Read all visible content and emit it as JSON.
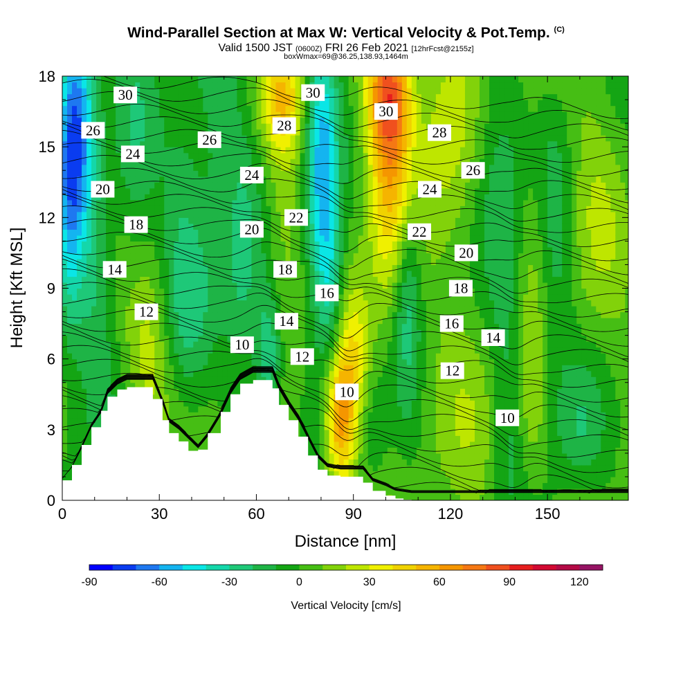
{
  "title": {
    "main": "Wind-Parallel Section at Max W: Vertical Velocity & Pot.Temp.",
    "copyright": "(C)",
    "valid_prefix": "Valid 1500 JST",
    "valid_z": "(0600Z)",
    "valid_date": "FRI 26 Feb 2021",
    "forecast": "[12hrFcst@2155z]",
    "box": "boxWmax=69@36.25,138.93,1464m"
  },
  "chart_data": {
    "type": "heatmap",
    "xlabel": "Distance [nm]",
    "ylabel": "Height [Kft MSL]",
    "xlim": [
      0,
      175
    ],
    "ylim": [
      0,
      18
    ],
    "x_ticks": [
      0,
      30,
      60,
      90,
      120,
      150
    ],
    "y_ticks": [
      0,
      3,
      6,
      9,
      12,
      15,
      18
    ],
    "colorbar": {
      "label": "Vertical Velocity [cm/s]",
      "range": [
        -90,
        130
      ],
      "step": 10,
      "tick_labels": [
        -90,
        -60,
        -30,
        0,
        30,
        60,
        90,
        120
      ],
      "colors": [
        "#0000ff",
        "#0a3cf0",
        "#1e78f0",
        "#14b4f0",
        "#0ae6e6",
        "#14d7aa",
        "#1ec878",
        "#1eb446",
        "#14a514",
        "#46be14",
        "#82d20a",
        "#bee600",
        "#f0f000",
        "#f0d200",
        "#f5b400",
        "#f59600",
        "#f57814",
        "#f0501e",
        "#e61e1e",
        "#d20a32",
        "#b40a46",
        "#961464"
      ]
    },
    "contours": {
      "variable": "Potential Temperature",
      "labels": [
        {
          "text": "30",
          "x": 19.5,
          "y": 17.2
        },
        {
          "text": "26",
          "x": 9.5,
          "y": 15.7
        },
        {
          "text": "24",
          "x": 21.8,
          "y": 14.7
        },
        {
          "text": "26",
          "x": 45.5,
          "y": 15.3
        },
        {
          "text": "20",
          "x": 12.5,
          "y": 13.2
        },
        {
          "text": "18",
          "x": 22.8,
          "y": 11.7
        },
        {
          "text": "14",
          "x": 16.2,
          "y": 9.8
        },
        {
          "text": "12",
          "x": 26.0,
          "y": 8.0
        },
        {
          "text": "24",
          "x": 58.6,
          "y": 13.8
        },
        {
          "text": "20",
          "x": 58.6,
          "y": 11.5
        },
        {
          "text": "28",
          "x": 68.6,
          "y": 15.9
        },
        {
          "text": "30",
          "x": 77.5,
          "y": 17.3
        },
        {
          "text": "22",
          "x": 72.3,
          "y": 12.0
        },
        {
          "text": "18",
          "x": 68.9,
          "y": 9.8
        },
        {
          "text": "16",
          "x": 81.8,
          "y": 8.8
        },
        {
          "text": "14",
          "x": 69.3,
          "y": 7.6
        },
        {
          "text": "10",
          "x": 55.6,
          "y": 6.6
        },
        {
          "text": "12",
          "x": 74.2,
          "y": 6.1
        },
        {
          "text": "10",
          "x": 88.0,
          "y": 4.6
        },
        {
          "text": "30",
          "x": 100.1,
          "y": 16.5
        },
        {
          "text": "28",
          "x": 116.6,
          "y": 15.6
        },
        {
          "text": "24",
          "x": 113.6,
          "y": 13.2
        },
        {
          "text": "26",
          "x": 127.0,
          "y": 14.0
        },
        {
          "text": "22",
          "x": 110.4,
          "y": 11.4
        },
        {
          "text": "20",
          "x": 124.9,
          "y": 10.5
        },
        {
          "text": "18",
          "x": 123.2,
          "y": 9.0
        },
        {
          "text": "16",
          "x": 120.4,
          "y": 7.5
        },
        {
          "text": "14",
          "x": 133.2,
          "y": 6.9
        },
        {
          "text": "12",
          "x": 120.6,
          "y": 5.5
        },
        {
          "text": "10",
          "x": 137.6,
          "y": 3.5
        }
      ]
    },
    "terrain": [
      [
        0,
        0.6
      ],
      [
        3,
        1.1
      ],
      [
        6,
        1.9
      ],
      [
        9,
        2.8
      ],
      [
        12,
        3.4
      ],
      [
        14,
        4.2
      ],
      [
        17,
        4.6
      ],
      [
        20,
        4.8
      ],
      [
        28,
        4.8
      ],
      [
        31,
        3.8
      ],
      [
        33,
        3.0
      ],
      [
        36,
        2.7
      ],
      [
        39,
        2.3
      ],
      [
        42,
        1.9
      ],
      [
        45,
        2.4
      ],
      [
        49,
        3.3
      ],
      [
        52,
        4.2
      ],
      [
        55,
        4.8
      ],
      [
        59,
        5.1
      ],
      [
        65,
        5.1
      ],
      [
        67,
        4.4
      ],
      [
        70,
        3.7
      ],
      [
        73,
        3.1
      ],
      [
        76,
        2.3
      ],
      [
        79,
        1.5
      ],
      [
        82,
        1.1
      ],
      [
        86,
        1.0
      ],
      [
        93,
        1.0
      ],
      [
        96,
        0.5
      ],
      [
        100,
        0.3
      ],
      [
        103,
        0.1
      ],
      [
        108,
        0
      ],
      [
        175,
        0
      ]
    ],
    "velocity_features": [
      {
        "x": 5,
        "y": 16.5,
        "sx": 4,
        "sy": 3.5,
        "v": -60
      },
      {
        "x": 2,
        "y": 12,
        "sx": 3,
        "sy": 5,
        "v": -35
      },
      {
        "x": 10,
        "y": 8,
        "sx": 4,
        "sy": 5,
        "v": -20
      },
      {
        "x": 22,
        "y": 14,
        "sx": 5,
        "sy": 5,
        "v": -18
      },
      {
        "x": 38,
        "y": 10,
        "sx": 5,
        "sy": 6,
        "v": -25
      },
      {
        "x": 48,
        "y": 14,
        "sx": 5,
        "sy": 5,
        "v": -20
      },
      {
        "x": 26,
        "y": 6,
        "sx": 5,
        "sy": 2.5,
        "v": 22
      },
      {
        "x": 40,
        "y": 4.5,
        "sx": 6,
        "sy": 2,
        "v": 12
      },
      {
        "x": 56,
        "y": 9,
        "sx": 4,
        "sy": 5,
        "v": -22
      },
      {
        "x": 64,
        "y": 6,
        "sx": 3,
        "sy": 2,
        "v": -40
      },
      {
        "x": 68,
        "y": 12,
        "sx": 4,
        "sy": 6,
        "v": 15
      },
      {
        "x": 68,
        "y": 17,
        "sx": 5,
        "sy": 1.5,
        "v": 30
      },
      {
        "x": 80,
        "y": 14,
        "sx": 3.5,
        "sy": 4.5,
        "v": -55
      },
      {
        "x": 83,
        "y": 9,
        "sx": 3,
        "sy": 3,
        "v": -30
      },
      {
        "x": 86,
        "y": 3.6,
        "sx": 3.5,
        "sy": 2.2,
        "v": 65
      },
      {
        "x": 91,
        "y": 6.5,
        "sx": 3,
        "sy": 2,
        "v": 25
      },
      {
        "x": 96,
        "y": 2.5,
        "sx": 4,
        "sy": 2,
        "v": -15
      },
      {
        "x": 101,
        "y": 17.5,
        "sx": 5,
        "sy": 2,
        "v": 65
      },
      {
        "x": 102,
        "y": 14,
        "sx": 5,
        "sy": 3,
        "v": 38
      },
      {
        "x": 99,
        "y": 9,
        "sx": 4,
        "sy": 4,
        "v": 12
      },
      {
        "x": 107,
        "y": 9,
        "sx": 3,
        "sy": 3.5,
        "v": -28
      },
      {
        "x": 118,
        "y": 16,
        "sx": 5,
        "sy": 3,
        "v": 20
      },
      {
        "x": 124,
        "y": 11,
        "sx": 6,
        "sy": 4,
        "v": 10
      },
      {
        "x": 133,
        "y": 14,
        "sx": 5,
        "sy": 4,
        "v": -18
      },
      {
        "x": 138,
        "y": 8,
        "sx": 4,
        "sy": 5,
        "v": -22
      },
      {
        "x": 146,
        "y": 12,
        "sx": 5,
        "sy": 4,
        "v": 12
      },
      {
        "x": 152,
        "y": 10,
        "sx": 4,
        "sy": 5,
        "v": -20
      },
      {
        "x": 165,
        "y": 12,
        "sx": 6,
        "sy": 5,
        "v": 10
      },
      {
        "x": 160,
        "y": 3,
        "sx": 5,
        "sy": 2,
        "v": -20
      },
      {
        "x": 145,
        "y": 3.5,
        "sx": 3,
        "sy": 2.5,
        "v": 15
      },
      {
        "x": 130,
        "y": 4,
        "sx": 6,
        "sy": 3,
        "v": 10
      }
    ]
  }
}
